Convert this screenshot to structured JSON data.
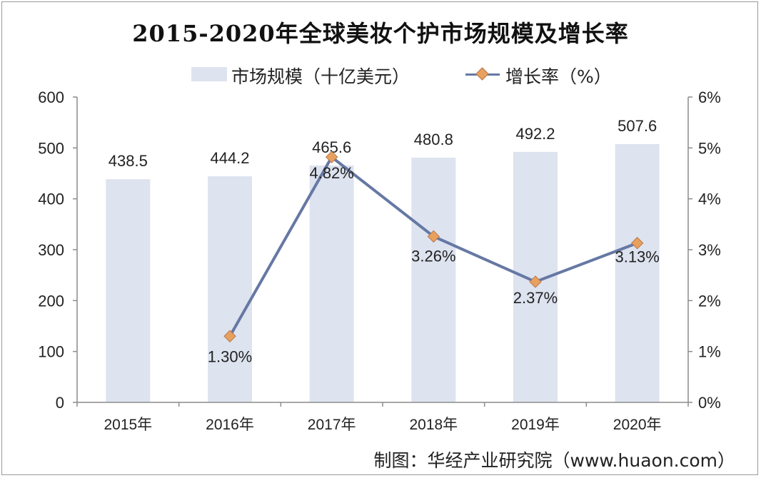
{
  "title": "2015-2020年全球美妆个护市场规模及增长率",
  "legend": {
    "bar_label": "市场规模（十亿美元）",
    "line_label": "增长率（%）"
  },
  "footer": "制图：华经产业研究院（www.huaon.com）",
  "colors": {
    "bar": "#dde3ef",
    "line": "#6678a4",
    "marker": "#e8a05e",
    "marker_stroke": "#b8784a",
    "axis": "#8c8c8c"
  },
  "chart_data": {
    "type": "bar",
    "categories": [
      "2015年",
      "2016年",
      "2017年",
      "2018年",
      "2019年",
      "2020年"
    ],
    "series": [
      {
        "name": "市场规模（十亿美元）",
        "type": "bar",
        "axis": "left",
        "values": [
          438.5,
          444.2,
          465.6,
          480.8,
          492.2,
          507.6
        ],
        "labels": [
          "438.5",
          "444.2",
          "465.6",
          "480.8",
          "492.2",
          "507.6"
        ]
      },
      {
        "name": "增长率（%）",
        "type": "line",
        "axis": "right",
        "values": [
          null,
          1.3,
          4.82,
          3.26,
          2.37,
          3.13
        ],
        "labels": [
          null,
          "1.30%",
          "4.82%",
          "3.26%",
          "2.37%",
          "3.13%"
        ]
      }
    ],
    "y_left": {
      "ylim": [
        0,
        600
      ],
      "ticks": [
        "0",
        "100",
        "200",
        "300",
        "400",
        "500",
        "600"
      ]
    },
    "y_right": {
      "ylim": [
        0,
        6
      ],
      "ticks": [
        "0%",
        "1%",
        "2%",
        "3%",
        "4%",
        "5%",
        "6%"
      ]
    },
    "grid": false,
    "legend_position": "top"
  }
}
